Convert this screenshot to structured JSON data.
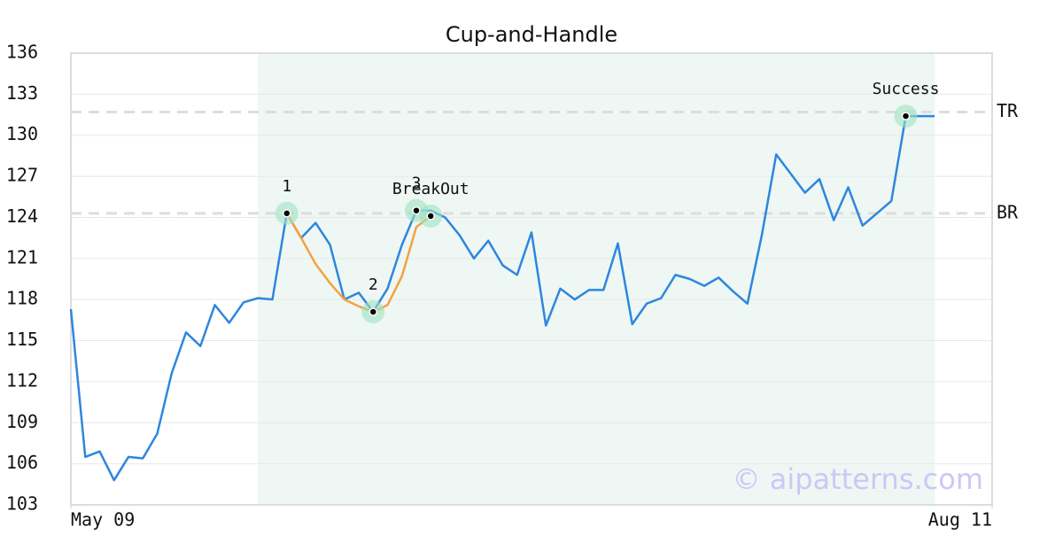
{
  "chart_data": {
    "type": "line",
    "title": "Cup-and-Handle",
    "x": [
      0,
      1,
      2,
      3,
      4,
      5,
      6,
      7,
      8,
      9,
      10,
      11,
      12,
      13,
      14,
      15,
      16,
      17,
      18,
      19,
      20,
      21,
      22,
      23,
      24,
      25,
      26,
      27,
      28,
      29,
      30,
      31,
      32,
      33,
      34,
      35,
      36,
      37,
      38,
      39,
      40,
      41,
      42,
      43,
      44,
      45,
      46,
      47,
      48,
      49,
      50,
      51,
      52,
      53,
      54,
      55,
      56,
      57,
      58,
      59,
      60
    ],
    "xlim": [
      0,
      64
    ],
    "xticks": [
      {
        "value": 0,
        "label": "May 09"
      },
      {
        "value": 64,
        "label": "Aug 11"
      }
    ],
    "ylim": [
      103,
      136
    ],
    "yticks": [
      103,
      106,
      109,
      112,
      115,
      118,
      121,
      124,
      127,
      130,
      133,
      136
    ],
    "grid": true,
    "series": [
      {
        "color": "#2e86de",
        "values": [
          117.3,
          106.5,
          106.9,
          104.8,
          106.5,
          106.4,
          108.2,
          112.6,
          115.6,
          114.6,
          117.6,
          116.3,
          117.8,
          118.1,
          118.0,
          124.3,
          122.5,
          123.6,
          122.0,
          118.0,
          118.5,
          117.1,
          118.8,
          122.0,
          124.5,
          124.5,
          124.0,
          122.7,
          121.0,
          122.3,
          120.5,
          119.8,
          122.9,
          116.1,
          118.8,
          118.0,
          118.7,
          118.7,
          122.1,
          116.2,
          117.7,
          118.1,
          119.8,
          119.5,
          119.0,
          119.6,
          118.6,
          117.7,
          122.7,
          128.6,
          127.2,
          125.8,
          126.8,
          123.8,
          126.2,
          123.4,
          124.3,
          125.2,
          131.4,
          131.4,
          131.4
        ]
      },
      {
        "color": "#f5a142",
        "values": [
          null,
          null,
          null,
          null,
          null,
          null,
          null,
          null,
          null,
          null,
          null,
          null,
          null,
          null,
          null,
          124.3,
          122.5,
          120.6,
          119.2,
          118.0,
          117.5,
          117.1,
          117.6,
          119.7,
          123.3,
          124.1,
          null,
          null,
          null,
          null,
          null,
          null,
          null,
          null,
          null,
          null,
          null,
          null,
          null,
          null,
          null,
          null,
          null,
          null,
          null,
          null,
          null,
          null,
          null,
          null,
          null,
          null,
          null,
          null,
          null,
          null,
          null,
          null,
          null,
          null,
          null
        ]
      }
    ],
    "shaded_region": {
      "x": [
        13,
        60
      ],
      "color": "#eef7f3"
    },
    "levels": [
      {
        "label": "TR",
        "value": 131.7
      },
      {
        "label": "BR",
        "value": 124.3
      }
    ],
    "markers": [
      {
        "label": "1",
        "x": 15,
        "y": 124.3
      },
      {
        "label": "2",
        "x": 21,
        "y": 117.1
      },
      {
        "label": "3",
        "x": 24,
        "y": 124.5
      },
      {
        "label": "BreakOut",
        "x": 25,
        "y": 124.1
      },
      {
        "label": "Success",
        "x": 58,
        "y": 131.4
      }
    ],
    "watermark": "© aipatterns.com"
  }
}
